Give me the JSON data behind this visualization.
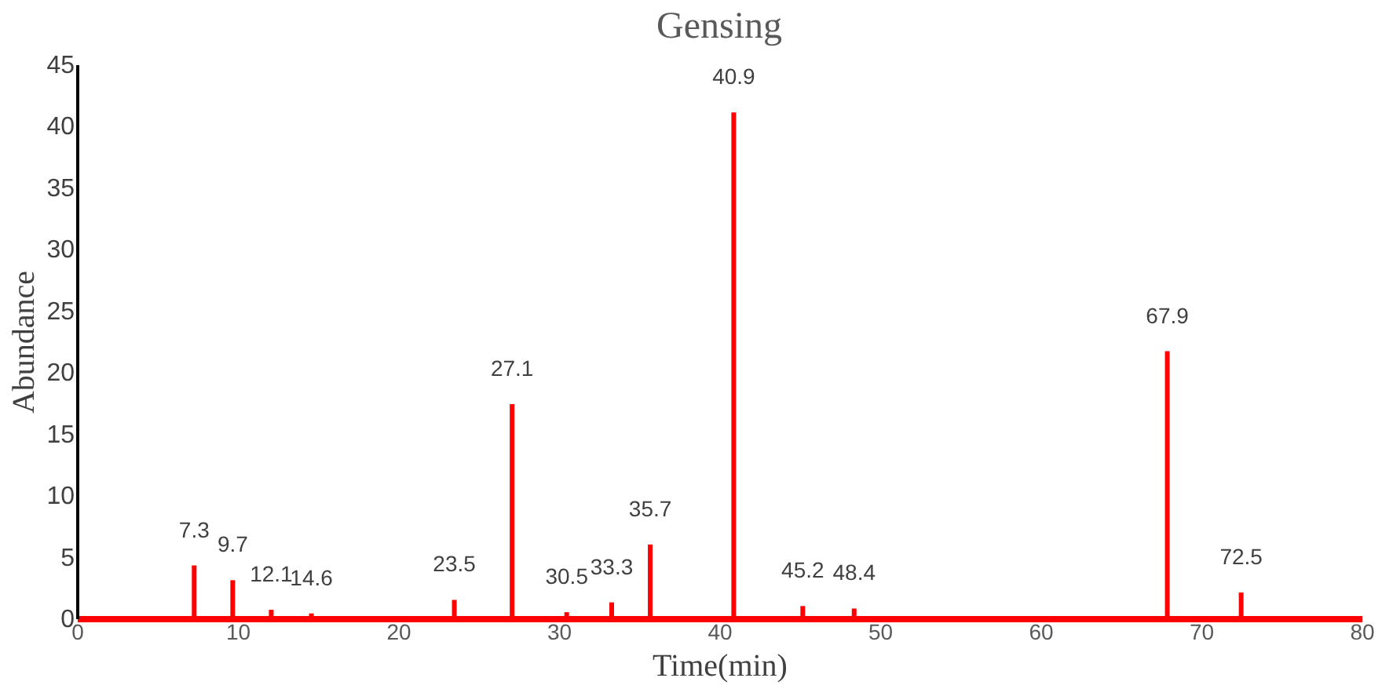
{
  "chart_data": {
    "type": "bar",
    "title": "Gensing",
    "xlabel": "Time(min)",
    "ylabel": "Abundance",
    "x": [
      7.3,
      9.7,
      12.1,
      14.6,
      23.5,
      27.1,
      30.5,
      33.3,
      35.7,
      40.9,
      45.2,
      48.4,
      67.9,
      72.5
    ],
    "values": [
      4.3,
      3.1,
      0.7,
      0.4,
      1.5,
      17.4,
      0.5,
      1.3,
      6.0,
      41.1,
      1.0,
      0.8,
      21.7,
      2.1
    ],
    "color": "#ff0000",
    "xlim": [
      0,
      80
    ],
    "xticks": [
      0,
      10,
      20,
      30,
      40,
      50,
      60,
      70,
      80
    ],
    "ylim": [
      0,
      45
    ],
    "yticks": [
      0,
      5,
      10,
      15,
      20,
      25,
      30,
      35,
      40,
      45
    ],
    "grid": false,
    "annotations": [
      {
        "text": "7.3",
        "x": 7.3,
        "y": 4.3
      },
      {
        "text": "9.7",
        "x": 9.7,
        "y": 3.1
      },
      {
        "text": "12.1",
        "x": 12.1,
        "y": 0.7
      },
      {
        "text": "14.6",
        "x": 14.6,
        "y": 0.4
      },
      {
        "text": "23.5",
        "x": 23.5,
        "y": 1.5
      },
      {
        "text": "27.1",
        "x": 27.1,
        "y": 17.4
      },
      {
        "text": "30.5",
        "x": 30.5,
        "y": 0.5
      },
      {
        "text": "33.3",
        "x": 33.3,
        "y": 1.3
      },
      {
        "text": "35.7",
        "x": 35.7,
        "y": 6.0
      },
      {
        "text": "40.9",
        "x": 40.9,
        "y": 41.1
      },
      {
        "text": "45.2",
        "x": 45.2,
        "y": 1.0
      },
      {
        "text": "48.4",
        "x": 48.4,
        "y": 0.8
      },
      {
        "text": "67.9",
        "x": 67.9,
        "y": 21.7
      },
      {
        "text": "72.5",
        "x": 72.5,
        "y": 2.1
      }
    ]
  }
}
